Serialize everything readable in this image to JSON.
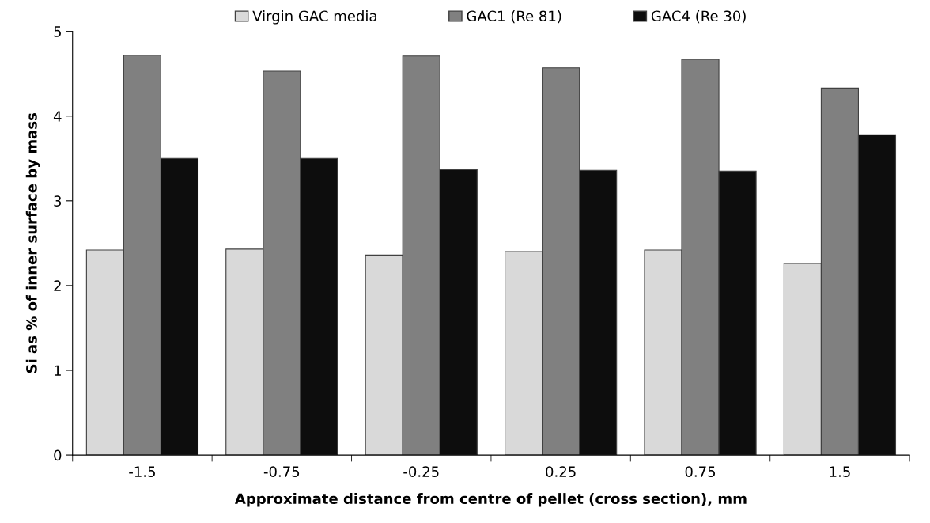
{
  "chart_data": {
    "type": "bar",
    "xlabel": "Approximate distance from centre of pellet (cross section), mm",
    "ylabel": "Si as % of inner surface by mass",
    "categories": [
      "-1.5",
      "-0.75",
      "-0.25",
      "0.25",
      "0.75",
      "1.5"
    ],
    "series": [
      {
        "name": "Virgin GAC media",
        "color": "#d9d9d9",
        "values": [
          2.42,
          2.43,
          2.36,
          2.4,
          2.42,
          2.26
        ]
      },
      {
        "name": "GAC1 (Re 81)",
        "color": "#808080",
        "values": [
          4.72,
          4.53,
          4.71,
          4.57,
          4.67,
          4.33
        ]
      },
      {
        "name": "GAC4 (Re 30)",
        "color": "#0d0d0d",
        "values": [
          3.5,
          3.5,
          3.37,
          3.36,
          3.35,
          3.78
        ]
      }
    ],
    "ylim": [
      0,
      5
    ],
    "yticks": [
      0,
      1,
      2,
      3,
      4,
      5
    ],
    "grid": false,
    "legend": "top"
  }
}
